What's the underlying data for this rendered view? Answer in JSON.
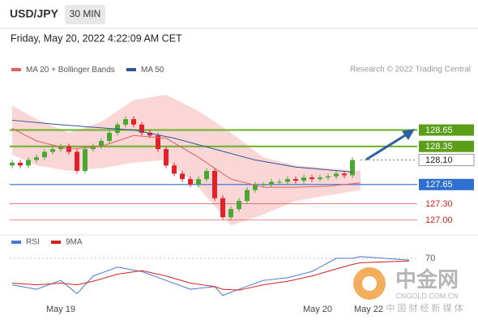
{
  "header": {
    "symbol": "USD/JPY",
    "timeframe": "30 MIN",
    "datetime": "Friday, May 20, 2022 4:22:09 AM CET"
  },
  "chart_data": [
    {
      "type": "candlestick",
      "credit": "Research © 2022 Trading Central",
      "xlim": [
        -0.3,
        56.5
      ],
      "ylim": [
        126.8,
        129.55
      ],
      "xticks": [
        {
          "value": 6,
          "label": "May 19"
        },
        {
          "value": 37.7,
          "label": "May 20"
        },
        {
          "value": 44,
          "label": "May 22"
        }
      ],
      "up_color": "#4aa832",
      "down_color": "#e0222a",
      "candles": {
        "open": [
          128.0,
          128.05,
          128.0,
          128.1,
          128.15,
          128.25,
          128.3,
          128.35,
          128.25,
          127.9,
          128.3,
          128.35,
          128.45,
          128.6,
          128.75,
          128.85,
          128.75,
          128.6,
          128.55,
          128.3,
          128.0,
          127.85,
          127.75,
          127.65,
          127.75,
          127.9,
          127.4,
          127.05,
          127.2,
          127.35,
          127.55,
          127.65,
          127.65,
          127.7,
          127.7,
          127.75,
          127.72,
          127.78,
          127.75,
          127.78,
          127.8,
          127.85,
          127.82
        ],
        "high": [
          128.1,
          128.1,
          128.15,
          128.2,
          128.3,
          128.35,
          128.4,
          128.4,
          128.3,
          128.35,
          128.4,
          128.5,
          128.65,
          128.8,
          128.9,
          128.9,
          128.8,
          128.65,
          128.6,
          128.35,
          128.05,
          127.9,
          127.8,
          127.8,
          127.95,
          127.95,
          127.45,
          127.25,
          127.4,
          127.6,
          127.7,
          127.7,
          127.75,
          127.75,
          127.8,
          127.8,
          127.83,
          127.83,
          127.83,
          127.85,
          127.9,
          127.9,
          128.15
        ],
        "low": [
          127.95,
          127.95,
          127.95,
          128.05,
          128.1,
          128.2,
          128.25,
          128.2,
          127.85,
          127.85,
          128.25,
          128.3,
          128.4,
          128.55,
          128.7,
          128.7,
          128.55,
          128.5,
          128.25,
          127.95,
          127.8,
          127.7,
          127.6,
          127.6,
          127.7,
          127.35,
          127.0,
          127.0,
          127.15,
          127.3,
          127.5,
          127.6,
          127.6,
          127.65,
          127.65,
          127.67,
          127.67,
          127.7,
          127.7,
          127.73,
          127.75,
          127.77,
          127.77
        ],
        "close": [
          128.05,
          128.0,
          128.1,
          128.15,
          128.25,
          128.3,
          128.35,
          128.25,
          127.9,
          128.3,
          128.35,
          128.45,
          128.6,
          128.75,
          128.85,
          128.75,
          128.6,
          128.55,
          128.3,
          128.0,
          127.85,
          127.75,
          127.65,
          127.75,
          127.9,
          127.4,
          127.05,
          127.2,
          127.35,
          127.55,
          127.65,
          127.65,
          127.7,
          127.7,
          127.75,
          127.72,
          127.78,
          127.75,
          127.78,
          127.8,
          127.85,
          127.82,
          128.1
        ]
      },
      "series": [
        {
          "name": "MA 20 + Bollinger Bands",
          "color": "#e06060",
          "band_color": "#fbd6d6",
          "x": [
            0,
            3,
            7,
            11,
            15,
            19,
            23,
            27,
            31,
            35,
            39,
            43
          ],
          "values": [
            128.68,
            128.45,
            128.3,
            128.35,
            128.55,
            128.5,
            128.15,
            127.75,
            127.6,
            127.6,
            127.62,
            127.68
          ],
          "upper": [
            129.1,
            128.85,
            128.6,
            128.8,
            129.2,
            129.3,
            129.0,
            128.6,
            128.15,
            128.0,
            127.95,
            127.9
          ],
          "lower": [
            128.2,
            128.0,
            127.9,
            127.95,
            128.05,
            128.1,
            127.6,
            126.9,
            127.1,
            127.35,
            127.45,
            127.55
          ]
        },
        {
          "name": "MA 50",
          "color": "#2f5597",
          "x": [
            0,
            5,
            10,
            15,
            20,
            25,
            30,
            35,
            42
          ],
          "values": [
            128.83,
            128.76,
            128.7,
            128.65,
            128.5,
            128.3,
            128.1,
            127.97,
            127.88
          ]
        }
      ],
      "levels": [
        128.65,
        128.35,
        {
          "value": 128.1,
          "label": "128.10"
        },
        127.65,
        {
          "value": 127.3,
          "label": "127.30"
        },
        {
          "value": 127,
          "label": "127.00"
        }
      ],
      "level_styles": [
        "resistance",
        "resistance",
        "current",
        "support",
        "minor",
        "minor"
      ]
    },
    {
      "type": "line",
      "xlim": [
        -0.3,
        56.5
      ],
      "ylim": [
        25,
        80
      ],
      "yticks": [
        70
      ],
      "series": [
        {
          "name": "RSI",
          "color": "#4a78d0",
          "x": [
            0,
            3,
            6,
            8,
            10,
            13,
            16,
            19,
            22,
            25,
            26,
            28,
            31,
            34,
            37,
            40,
            42,
            43,
            49
          ],
          "values": [
            40,
            35,
            45,
            30,
            50,
            60,
            55,
            45,
            35,
            38,
            28,
            35,
            45,
            48,
            55,
            70,
            70,
            72,
            68
          ]
        },
        {
          "name": "9MA",
          "color": "#d62020",
          "x": [
            0,
            3,
            6,
            8,
            10,
            13,
            16,
            19,
            22,
            25,
            26,
            28,
            31,
            34,
            37,
            40,
            42,
            43,
            49
          ],
          "values": [
            42,
            40,
            42,
            40,
            44,
            52,
            56,
            50,
            42,
            38,
            35,
            34,
            40,
            44,
            50,
            58,
            63,
            65,
            67
          ]
        }
      ]
    }
  ],
  "watermark": {
    "name": "中金网",
    "site": "CNGOLD.COM.CN",
    "slogan": "中 国 财 经 新 媒 体"
  }
}
